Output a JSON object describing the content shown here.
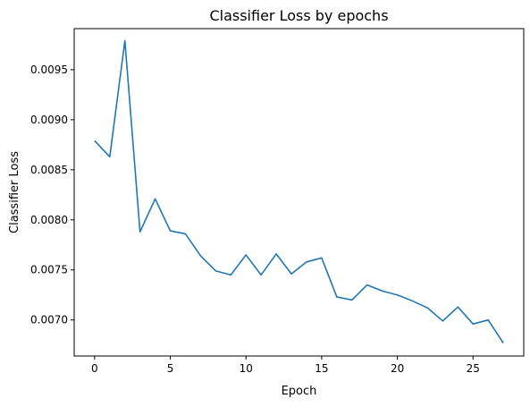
{
  "chart_data": {
    "type": "line",
    "title": "Classifier Loss by epochs",
    "xlabel": "Epoch",
    "ylabel": "Classifier Loss",
    "xlim": [
      -1.35,
      28.35
    ],
    "ylim": [
      0.00664,
      0.00991
    ],
    "x_ticks": [
      0,
      5,
      10,
      15,
      20,
      25
    ],
    "y_ticks": [
      0.007,
      0.0075,
      0.008,
      0.0085,
      0.009,
      0.0095
    ],
    "y_tick_labels": [
      "0.0070",
      "0.0075",
      "0.0080",
      "0.0085",
      "0.0090",
      "0.0095"
    ],
    "grid": false,
    "series": [
      {
        "color": "#1f77b4",
        "x": [
          0,
          1,
          2,
          3,
          4,
          5,
          6,
          7,
          8,
          9,
          10,
          11,
          12,
          13,
          14,
          15,
          16,
          17,
          18,
          19,
          20,
          21,
          22,
          23,
          24,
          25,
          26,
          27
        ],
        "values": [
          0.00879,
          0.00863,
          0.00979,
          0.00788,
          0.00821,
          0.00789,
          0.00786,
          0.00764,
          0.00749,
          0.00745,
          0.00765,
          0.00745,
          0.00766,
          0.00746,
          0.00758,
          0.00762,
          0.00723,
          0.0072,
          0.00735,
          0.00729,
          0.00725,
          0.00719,
          0.00712,
          0.00699,
          0.00713,
          0.00696,
          0.007,
          0.00677
        ]
      }
    ]
  }
}
